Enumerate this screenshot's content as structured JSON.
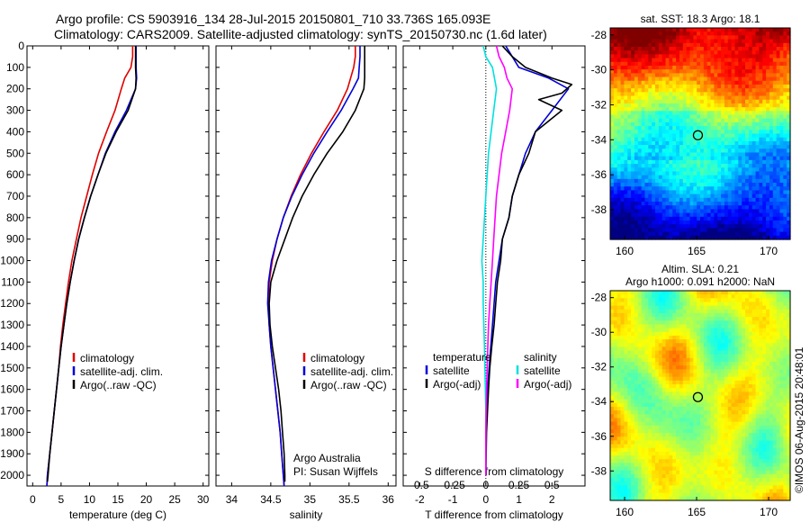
{
  "header": {
    "line1": "Argo profile: CS 5903916_134 28-Jul-2015 20150801_710 33.736S 165.093E",
    "line2": "Climatology: CARS2009. Satellite-adjusted climatology: synTS_20150730.nc (1.6d later)"
  },
  "sst_map": {
    "title": "sat. SST: 18.3 Argo: 18.1"
  },
  "sla_map": {
    "title_line1": "Altim. SLA: 0.21",
    "title_line2": "Argo h1000: 0.091 h2000: NaN"
  },
  "credit": "©IMOS 06-Aug-2015 20:48:01",
  "colors": {
    "climatology": "#e00000",
    "satellite": "#0000d8",
    "argo": "#000000",
    "sat_salinity": "#00e0e0",
    "argo_salinity": "#ff00ff"
  },
  "chart_data": [
    {
      "type": "line",
      "panel": "temperature",
      "xlabel": "temperature (deg C)",
      "xlim": [
        -1,
        31
      ],
      "xticks": [
        0,
        5,
        10,
        15,
        20,
        25,
        30
      ],
      "ylim": [
        2050,
        0
      ],
      "yticks": [
        0,
        100,
        200,
        300,
        400,
        500,
        600,
        700,
        800,
        900,
        1000,
        1100,
        1200,
        1300,
        1400,
        1500,
        1600,
        1700,
        1800,
        1900,
        2000
      ],
      "legend": [
        "climatology",
        "satellite-adj. clim.",
        "Argo(..raw -QC)"
      ],
      "series": [
        {
          "name": "climatology",
          "color": "#e00000",
          "points": [
            [
              17.6,
              0
            ],
            [
              17.6,
              50
            ],
            [
              17.3,
              100
            ],
            [
              16.2,
              150
            ],
            [
              15.6,
              200
            ],
            [
              14.5,
              300
            ],
            [
              13.0,
              400
            ],
            [
              11.6,
              500
            ],
            [
              10.5,
              600
            ],
            [
              9.5,
              700
            ],
            [
              8.5,
              800
            ],
            [
              7.7,
              900
            ],
            [
              6.9,
              1000
            ],
            [
              6.3,
              1100
            ],
            [
              5.8,
              1200
            ],
            [
              5.3,
              1300
            ],
            [
              4.9,
              1400
            ],
            [
              4.6,
              1500
            ],
            [
              4.2,
              1600
            ],
            [
              3.8,
              1700
            ],
            [
              3.4,
              1800
            ],
            [
              3.0,
              1900
            ],
            [
              2.6,
              2000
            ],
            [
              2.5,
              2050
            ]
          ]
        },
        {
          "name": "satellite-adj. clim.",
          "color": "#0000d8",
          "points": [
            [
              18.2,
              0
            ],
            [
              18.2,
              50
            ],
            [
              18.2,
              100
            ],
            [
              18.3,
              150
            ],
            [
              18.1,
              200
            ],
            [
              16.5,
              300
            ],
            [
              14.5,
              400
            ],
            [
              12.8,
              500
            ],
            [
              11.5,
              600
            ],
            [
              10.2,
              700
            ],
            [
              9.1,
              800
            ],
            [
              8.1,
              900
            ],
            [
              7.3,
              1000
            ],
            [
              6.6,
              1100
            ],
            [
              6.0,
              1200
            ],
            [
              5.5,
              1300
            ],
            [
              5.0,
              1400
            ],
            [
              4.6,
              1500
            ],
            [
              4.2,
              1600
            ],
            [
              3.8,
              1700
            ],
            [
              3.4,
              1800
            ],
            [
              3.0,
              1900
            ],
            [
              2.6,
              2000
            ],
            [
              2.5,
              2050
            ]
          ]
        },
        {
          "name": "Argo(..raw -QC)",
          "color": "#000000",
          "points": [
            [
              18.1,
              0
            ],
            [
              18.1,
              100
            ],
            [
              18.2,
              150
            ],
            [
              18.1,
              200
            ],
            [
              16.8,
              300
            ],
            [
              14.7,
              400
            ],
            [
              12.9,
              500
            ],
            [
              11.5,
              600
            ],
            [
              10.2,
              700
            ],
            [
              9.1,
              800
            ],
            [
              8.1,
              900
            ],
            [
              7.3,
              1000
            ],
            [
              6.6,
              1100
            ],
            [
              6.0,
              1200
            ],
            [
              5.5,
              1300
            ],
            [
              5.0,
              1400
            ],
            [
              4.6,
              1500
            ],
            [
              4.2,
              1600
            ],
            [
              3.8,
              1700
            ],
            [
              3.4,
              1800
            ],
            [
              3.0,
              1900
            ],
            [
              2.7,
              2000
            ],
            [
              2.6,
              2030
            ]
          ]
        }
      ]
    },
    {
      "type": "line",
      "panel": "salinity",
      "xlabel": "salinity",
      "xlim": [
        33.8,
        36.1
      ],
      "xticks": [
        34,
        34.5,
        35,
        35.5,
        36
      ],
      "ylim": [
        2050,
        0
      ],
      "legend": [
        "climatology",
        "satellite-adj. clim.",
        "Argo(..raw -QC)"
      ],
      "annotation": [
        "Argo Australia",
        "PI: Susan Wijffels"
      ],
      "series": [
        {
          "name": "climatology",
          "color": "#e00000",
          "points": [
            [
              35.58,
              0
            ],
            [
              35.58,
              50
            ],
            [
              35.56,
              100
            ],
            [
              35.48,
              200
            ],
            [
              35.35,
              300
            ],
            [
              35.18,
              400
            ],
            [
              35.02,
              500
            ],
            [
              34.88,
              600
            ],
            [
              34.76,
              700
            ],
            [
              34.66,
              800
            ],
            [
              34.58,
              900
            ],
            [
              34.52,
              1000
            ],
            [
              34.48,
              1100
            ],
            [
              34.47,
              1200
            ],
            [
              34.48,
              1300
            ],
            [
              34.5,
              1400
            ],
            [
              34.53,
              1500
            ],
            [
              34.56,
              1600
            ],
            [
              34.59,
              1700
            ],
            [
              34.62,
              1800
            ],
            [
              34.64,
              1900
            ],
            [
              34.66,
              2000
            ],
            [
              34.67,
              2050
            ]
          ]
        },
        {
          "name": "satellite-adj. clim.",
          "color": "#0000d8",
          "points": [
            [
              35.64,
              0
            ],
            [
              35.64,
              50
            ],
            [
              35.63,
              100
            ],
            [
              35.62,
              150
            ],
            [
              35.55,
              200
            ],
            [
              35.4,
              300
            ],
            [
              35.22,
              400
            ],
            [
              35.05,
              500
            ],
            [
              34.9,
              600
            ],
            [
              34.77,
              700
            ],
            [
              34.66,
              800
            ],
            [
              34.58,
              900
            ],
            [
              34.51,
              1000
            ],
            [
              34.47,
              1100
            ],
            [
              34.46,
              1200
            ],
            [
              34.48,
              1300
            ],
            [
              34.5,
              1400
            ],
            [
              34.53,
              1500
            ],
            [
              34.56,
              1600
            ],
            [
              34.59,
              1700
            ],
            [
              34.62,
              1800
            ],
            [
              34.64,
              1900
            ],
            [
              34.66,
              2000
            ],
            [
              34.67,
              2050
            ]
          ]
        },
        {
          "name": "Argo(..raw -QC)",
          "color": "#000000",
          "points": [
            [
              35.7,
              0
            ],
            [
              35.7,
              50
            ],
            [
              35.7,
              100
            ],
            [
              35.7,
              150
            ],
            [
              35.69,
              200
            ],
            [
              35.58,
              300
            ],
            [
              35.42,
              400
            ],
            [
              35.22,
              500
            ],
            [
              35.05,
              600
            ],
            [
              34.9,
              700
            ],
            [
              34.78,
              800
            ],
            [
              34.68,
              900
            ],
            [
              34.58,
              1000
            ],
            [
              34.5,
              1100
            ],
            [
              34.48,
              1200
            ],
            [
              34.49,
              1300
            ],
            [
              34.52,
              1400
            ],
            [
              34.56,
              1500
            ],
            [
              34.6,
              1600
            ],
            [
              34.63,
              1700
            ],
            [
              34.65,
              1800
            ],
            [
              34.67,
              1900
            ],
            [
              34.68,
              2000
            ],
            [
              34.68,
              2030
            ]
          ]
        }
      ]
    },
    {
      "type": "line",
      "panel": "difference",
      "xlabel": "T difference from climatology",
      "xlabel_top": "S difference from climatology",
      "xlim": [
        -2.5,
        3.0
      ],
      "xticks": [
        -2,
        -1,
        0,
        1,
        2
      ],
      "xticks_S": [
        -0.5,
        -0.25,
        0,
        0.25,
        0.5
      ],
      "ylim": [
        2050,
        0
      ],
      "legend": {
        "temperature_heading": "temperature",
        "salinity_heading": "salinity",
        "items": [
          "satellite",
          "Argo(-adj)",
          "satellite",
          "Argo(-adj)"
        ]
      },
      "series": [
        {
          "name": "T satellite",
          "color": "#0000d8",
          "points": [
            [
              0.6,
              0
            ],
            [
              0.8,
              50
            ],
            [
              1.0,
              100
            ],
            [
              1.9,
              150
            ],
            [
              2.5,
              200
            ],
            [
              2.0,
              300
            ],
            [
              1.5,
              400
            ],
            [
              1.2,
              500
            ],
            [
              1.0,
              600
            ],
            [
              0.8,
              700
            ],
            [
              0.7,
              800
            ],
            [
              0.5,
              900
            ],
            [
              0.4,
              1000
            ],
            [
              0.3,
              1100
            ],
            [
              0.25,
              1200
            ],
            [
              0.2,
              1300
            ],
            [
              0.15,
              1400
            ],
            [
              0.1,
              1500
            ],
            [
              0.05,
              1600
            ],
            [
              0.03,
              1700
            ],
            [
              0.0,
              1800
            ],
            [
              0.0,
              2000
            ]
          ]
        },
        {
          "name": "T Argo(-adj)",
          "color": "#000000",
          "points": [
            [
              0.5,
              0
            ],
            [
              0.8,
              50
            ],
            [
              1.2,
              100
            ],
            [
              2.0,
              150
            ],
            [
              2.6,
              180
            ],
            [
              2.3,
              220
            ],
            [
              1.6,
              250
            ],
            [
              2.3,
              300
            ],
            [
              1.5,
              400
            ],
            [
              1.3,
              500
            ],
            [
              1.0,
              600
            ],
            [
              0.8,
              700
            ],
            [
              0.7,
              800
            ],
            [
              0.5,
              900
            ],
            [
              0.45,
              1000
            ],
            [
              0.35,
              1100
            ],
            [
              0.3,
              1200
            ],
            [
              0.25,
              1300
            ],
            [
              0.18,
              1400
            ],
            [
              0.12,
              1500
            ],
            [
              0.08,
              1600
            ],
            [
              0.05,
              1700
            ],
            [
              0.02,
              1800
            ],
            [
              0.0,
              2000
            ]
          ]
        },
        {
          "name": "S satellite",
          "color": "#00e0e0",
          "points": [
            [
              -0.02,
              0
            ],
            [
              0.0,
              50
            ],
            [
              0.05,
              100
            ],
            [
              0.08,
              200
            ],
            [
              0.06,
              300
            ],
            [
              0.04,
              400
            ],
            [
              0.02,
              500
            ],
            [
              0.0,
              700
            ],
            [
              -0.02,
              900
            ],
            [
              -0.03,
              1000
            ],
            [
              -0.02,
              1100
            ],
            [
              -0.02,
              1200
            ],
            [
              -0.01,
              1400
            ],
            [
              0.0,
              1700
            ],
            [
              0.0,
              2000
            ]
          ]
        },
        {
          "name": "S Argo(-adj)",
          "color": "#ff00ff",
          "points": [
            [
              0.08,
              0
            ],
            [
              0.1,
              50
            ],
            [
              0.14,
              100
            ],
            [
              0.16,
              150
            ],
            [
              0.2,
              200
            ],
            [
              0.18,
              300
            ],
            [
              0.15,
              400
            ],
            [
              0.12,
              500
            ],
            [
              0.1,
              600
            ],
            [
              0.08,
              700
            ],
            [
              0.07,
              800
            ],
            [
              0.06,
              900
            ],
            [
              0.05,
              1000
            ],
            [
              0.04,
              1100
            ],
            [
              0.03,
              1200
            ],
            [
              0.02,
              1300
            ],
            [
              0.015,
              1400
            ],
            [
              0.01,
              1500
            ],
            [
              0.005,
              1600
            ],
            [
              0.0,
              1800
            ],
            [
              0.0,
              2000
            ]
          ]
        }
      ]
    },
    {
      "type": "heatmap",
      "panel": "sst_map",
      "xticks": [
        160,
        165,
        170
      ],
      "yticks": [
        -28,
        -30,
        -32,
        -34,
        -36,
        -38
      ],
      "xlim": [
        159,
        171.5
      ],
      "ylim": [
        -39.7,
        -27.6
      ],
      "marker": [
        165.09,
        -33.74
      ]
    },
    {
      "type": "heatmap",
      "panel": "sla_map",
      "xticks": [
        160,
        165,
        170
      ],
      "yticks": [
        -28,
        -30,
        -32,
        -34,
        -36,
        -38
      ],
      "xlim": [
        159,
        171.5
      ],
      "ylim": [
        -39.7,
        -27.6
      ],
      "marker": [
        165.09,
        -33.74
      ]
    }
  ]
}
